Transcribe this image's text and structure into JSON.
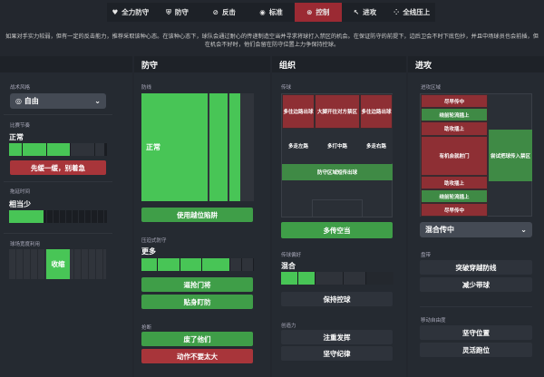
{
  "tabs": [
    {
      "label": "全力防守",
      "icon": "heart-shield-icon"
    },
    {
      "label": "防守",
      "icon": "shield-icon"
    },
    {
      "label": "反击",
      "icon": "counter-icon"
    },
    {
      "label": "标准",
      "icon": "balance-icon"
    },
    {
      "label": "控制",
      "icon": "control-icon",
      "active": true
    },
    {
      "label": "进攻",
      "icon": "arrow-attack-icon"
    },
    {
      "label": "全线压上",
      "icon": "all-out-icon"
    }
  ],
  "description": "如果对手实力较弱，但有一定的反击能力，推荐采取该种心态。在该种心态下，球队会通过耐心的传递制造空当并寻求将球打入禁区的机会。在保证防守的前提下，边后卫会不时下底包抄，并且中场球员也会前插，但在机会不好时，他们会留在防守位置上力争保持控球。",
  "general": {
    "style_label": "战术风格",
    "style_value": "自由",
    "tempo_label": "比赛节奏",
    "tempo_value": "正常",
    "tempo_level": 0.64,
    "tempo_button": "先缓一缓，别着急",
    "time_label": "拖延时间",
    "time_value": "相当少",
    "time_level": 0.35,
    "width_label": "球场宽度利用",
    "width_value": "收缩"
  },
  "defence": {
    "title": "防守",
    "line_label": "防线",
    "line_value": "正常",
    "offside_button": "使用越位陷阱",
    "press_label": "压迫式防守",
    "press_value": "更多",
    "press_level": 0.8,
    "press_buttons": [
      "逼抢门将",
      "贴身盯防"
    ],
    "tackle_label": "抢断",
    "tackle_buttons": [
      "废了他们",
      "动作不要太大"
    ]
  },
  "build": {
    "title": "组织",
    "passing_label": "传球",
    "zones": [
      "多往边路出球",
      "大脚开往对方禁区",
      "多往边路出球",
      "多走左路",
      "多打中路",
      "多走右路",
      "防守区域短传出球"
    ],
    "passing_button": "多传空当",
    "pref_label": "传球偏好",
    "pref_value": "混合",
    "pref_level": 0.35,
    "pref_button": "保持控球",
    "creativity_label": "创造力",
    "creativity_buttons": [
      "注重发挥",
      "坚守纪律"
    ]
  },
  "attack": {
    "title": "进攻",
    "zone_label": "进攻区域",
    "zones": [
      "尽早传中",
      "绕前轮流插上",
      "助攻插上",
      "有机会就射门",
      "助攻插上",
      "绕前轮流插上",
      "尽早传中",
      "尝试把球传入禁区"
    ],
    "cross_value": "混合传中",
    "dribble_label": "盘带",
    "dribble_buttons": [
      "突破穿越防线",
      "减少带球"
    ],
    "move_label": "移动自由度",
    "move_buttons": [
      "坚守位置",
      "灵活跑位"
    ]
  },
  "colors": {
    "green": "#3f9e48",
    "red": "#a8353a",
    "bright_green": "#48c556"
  }
}
